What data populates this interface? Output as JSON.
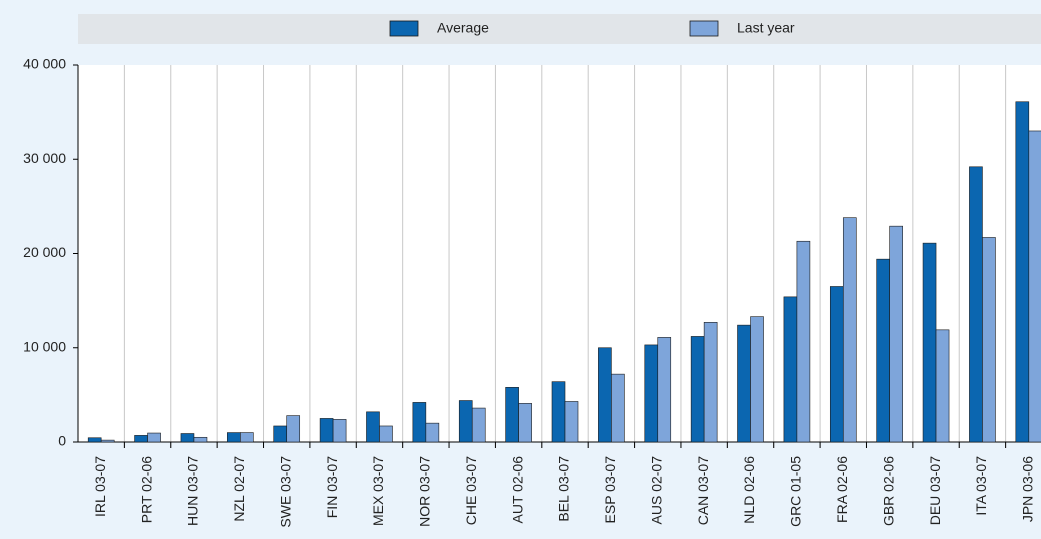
{
  "chart_data": {
    "type": "bar",
    "categories": [
      "IRL 03-07",
      "PRT 02-06",
      "HUN 03-07",
      "NZL 02-07",
      "SWE 03-07",
      "FIN 03-07",
      "MEX 03-07",
      "NOR 03-07",
      "CHE 03-07",
      "AUT 02-06",
      "BEL 03-07",
      "ESP 03-07",
      "AUS 02-07",
      "CAN 03-07",
      "NLD 02-06",
      "GRC 01-05",
      "FRA 02-06",
      "GBR 02-06",
      "DEU 03-07",
      "ITA 03-07",
      "JPN 03-06"
    ],
    "series": [
      {
        "name": "Average",
        "color": "#0b66b0",
        "values": [
          450,
          700,
          900,
          1000,
          1700,
          2500,
          3200,
          4200,
          4400,
          5800,
          6400,
          10000,
          10300,
          11200,
          12400,
          15400,
          16500,
          19400,
          21100,
          29200,
          36100
        ]
      },
      {
        "name": "Last year",
        "color": "#7ea5da",
        "values": [
          200,
          950,
          500,
          1000,
          2800,
          2400,
          1700,
          2000,
          3600,
          4100,
          4300,
          7200,
          11100,
          12700,
          13300,
          21300,
          23800,
          22900,
          11900,
          21700,
          33000
        ]
      }
    ],
    "ylim": [
      0,
      40000
    ],
    "yticks": [
      0,
      {
        "value": 10000,
        "label": "10 000"
      },
      {
        "value": 20000,
        "label": "20 000"
      },
      {
        "value": 30000,
        "label": "30 000"
      },
      {
        "value": 40000,
        "label": "40 000"
      }
    ],
    "grid": true
  }
}
